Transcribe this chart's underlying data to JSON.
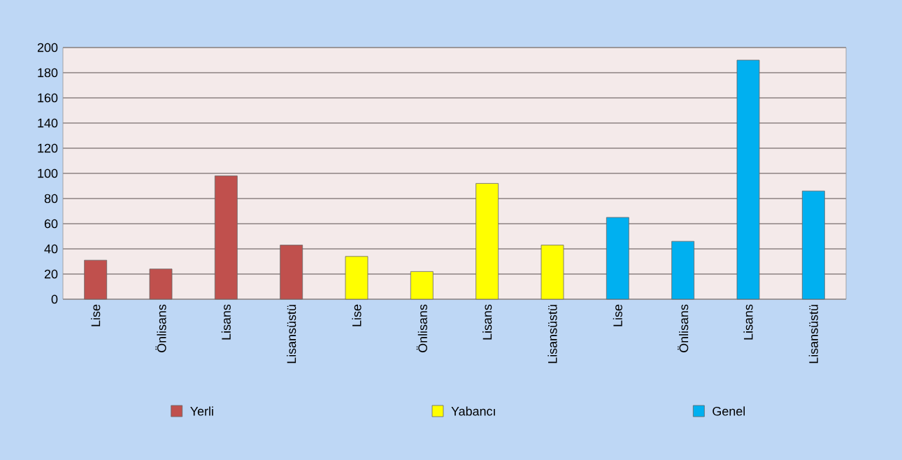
{
  "chart_data": {
    "type": "bar",
    "categories": [
      "Lise",
      "Önlisans",
      "Lisans",
      "Lisansüstü",
      "Lise",
      "Önlisans",
      "Lisans",
      "Lisansüstü",
      "Lise",
      "Önlisans",
      "Lisans",
      "Lisansüstü"
    ],
    "series": [
      {
        "name": "Yerli",
        "color": "#c0504d",
        "values": [
          31,
          24,
          98,
          43,
          null,
          null,
          null,
          null,
          null,
          null,
          null,
          null
        ]
      },
      {
        "name": "Yabancı",
        "color": "#ffff00",
        "values": [
          null,
          null,
          null,
          null,
          34,
          22,
          92,
          43,
          null,
          null,
          null,
          null
        ]
      },
      {
        "name": "Genel",
        "color": "#00b0f0",
        "values": [
          null,
          null,
          null,
          null,
          null,
          null,
          null,
          null,
          65,
          46,
          190,
          86
        ]
      }
    ],
    "ylim": [
      0,
      200
    ],
    "yticks": [
      0,
      20,
      40,
      60,
      80,
      100,
      120,
      140,
      160,
      180,
      200
    ],
    "grid": "y",
    "legend": "bottom"
  }
}
